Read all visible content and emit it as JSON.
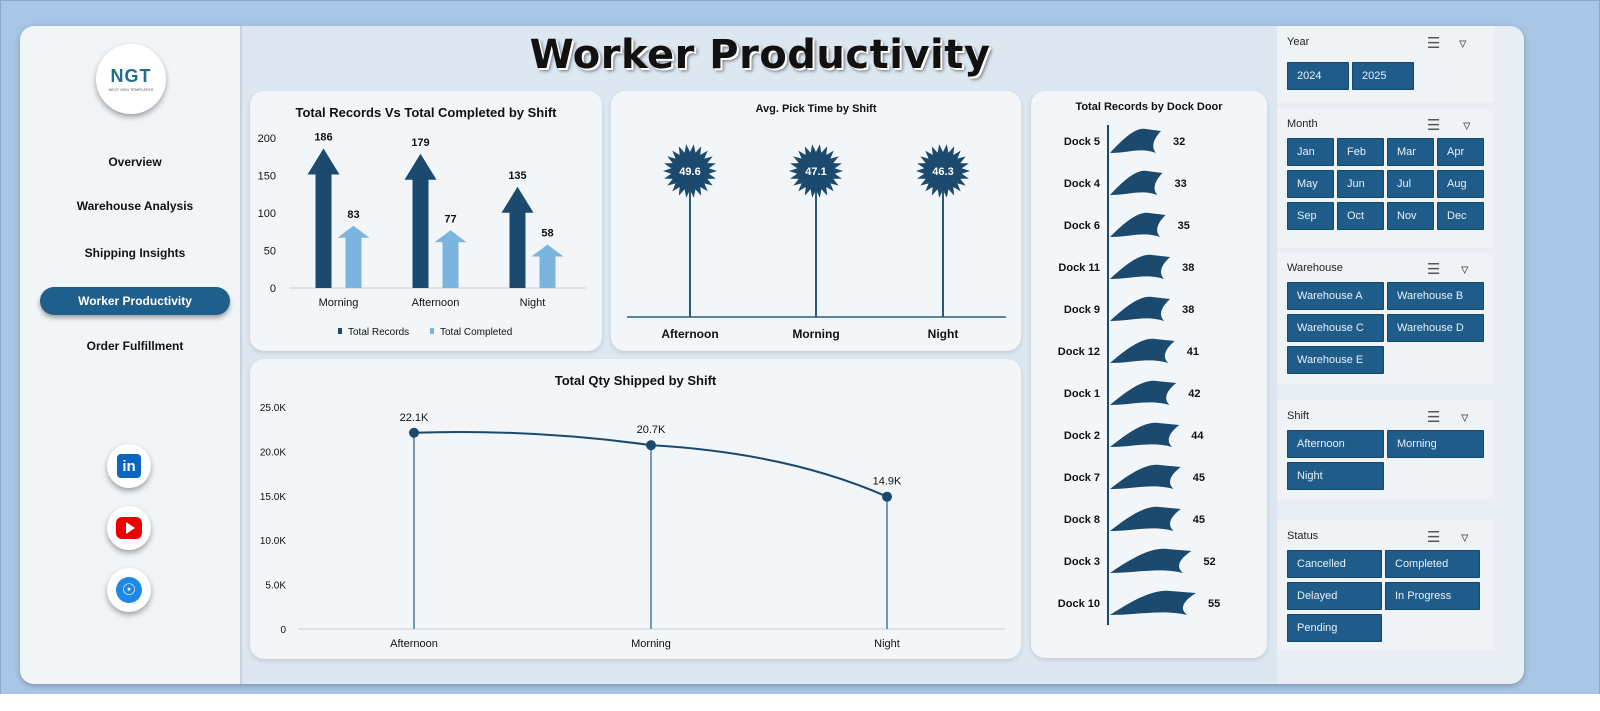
{
  "title": "Worker Productivity",
  "logo": {
    "text": "NGT",
    "sub": "NEXT GEN TEMPLATES"
  },
  "nav": [
    {
      "label": "Overview"
    },
    {
      "label": "Warehouse Analysis"
    },
    {
      "label": "Shipping Insights"
    },
    {
      "label": "Worker Productivity",
      "active": true
    },
    {
      "label": "Order Fulfillment"
    }
  ],
  "social": {
    "linkedin_label": "in",
    "web_icon": "globe-icon",
    "youtube_icon": "youtube-icon"
  },
  "colors": {
    "dark": "#1b4a6e",
    "light": "#7cb4e0",
    "accent": "#1f5c8a"
  },
  "chart_data": [
    {
      "type": "bar",
      "title": "Total Records Vs Total Completed by Shift",
      "categories": [
        "Morning",
        "Afternoon",
        "Night"
      ],
      "series": [
        {
          "name": "Total Records",
          "values": [
            186,
            179,
            135
          ]
        },
        {
          "name": "Total Completed",
          "values": [
            83,
            77,
            58
          ]
        }
      ],
      "yticks": [
        "0",
        "50",
        "100",
        "150",
        "200"
      ],
      "ylim": [
        0,
        200
      ],
      "legend": "bottom"
    },
    {
      "type": "scatter",
      "title": "Avg. Pick Time by Shift",
      "categories": [
        "Afternoon",
        "Morning",
        "Night"
      ],
      "values": [
        49.6,
        47.1,
        46.3
      ],
      "labels": [
        "49.6",
        "47.1",
        "46.3"
      ]
    },
    {
      "type": "line",
      "title": "Total Qty Shipped by Shift",
      "categories": [
        "Afternoon",
        "Morning",
        "Night"
      ],
      "values": [
        22100,
        20700,
        14900
      ],
      "labels": [
        "22.1K",
        "20.7K",
        "14.9K"
      ],
      "yticks": [
        "0",
        "5.0K",
        "10.0K",
        "15.0K",
        "20.0K",
        "25.0K"
      ],
      "ylim": [
        0,
        25000
      ]
    },
    {
      "type": "bar",
      "title": "Total Records by Dock Door",
      "categories": [
        "Dock 5",
        "Dock 4",
        "Dock 6",
        "Dock 11",
        "Dock 9",
        "Dock 12",
        "Dock 1",
        "Dock 2",
        "Dock 7",
        "Dock 8",
        "Dock 3",
        "Dock 10"
      ],
      "values": [
        32,
        33,
        35,
        38,
        38,
        41,
        42,
        44,
        45,
        45,
        52,
        55
      ]
    }
  ],
  "filters": [
    {
      "label": "Year",
      "options": [
        "2024",
        "2025"
      ]
    },
    {
      "label": "Month",
      "options": [
        "Jan",
        "Feb",
        "Mar",
        "Apr",
        "May",
        "Jun",
        "Jul",
        "Aug",
        "Sep",
        "Oct",
        "Nov",
        "Dec"
      ]
    },
    {
      "label": "Warehouse",
      "options": [
        "Warehouse A",
        "Warehouse B",
        "Warehouse C",
        "Warehouse D",
        "Warehouse E"
      ]
    },
    {
      "label": "Shift",
      "options": [
        "Afternoon",
        "Morning",
        "Night"
      ]
    },
    {
      "label": "Status",
      "options": [
        "Cancelled",
        "Completed",
        "Delayed",
        "In Progress",
        "Pending"
      ]
    }
  ]
}
